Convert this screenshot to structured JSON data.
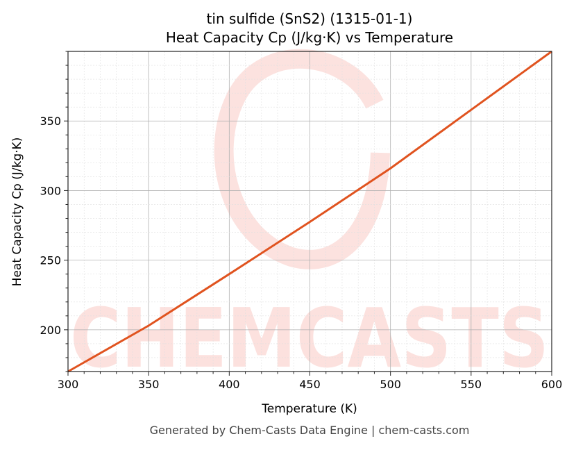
{
  "chart_data": {
    "type": "line",
    "title": "tin sulfide (SnS2) (1315-01-1)",
    "subtitle": "Heat Capacity Cp (J/kg·K) vs Temperature",
    "xlabel": "Temperature (K)",
    "ylabel": "Heat Capacity Cp (J/kg·K)",
    "xlim": [
      300,
      600
    ],
    "ylim": [
      170,
      400
    ],
    "xticks": [
      300,
      350,
      400,
      450,
      500,
      550,
      600
    ],
    "yticks": [
      200,
      250,
      300,
      350
    ],
    "grid": true,
    "series": [
      {
        "color": "#e0531f",
        "x": [
          300,
          350,
          400,
          450,
          500,
          550,
          600
        ],
        "y": [
          170,
          203,
          240,
          277.5,
          316,
          358,
          400
        ]
      }
    ]
  },
  "watermark": "CHEMCASTS",
  "footer": "Generated by Chem-Casts Data Engine | chem-casts.com"
}
